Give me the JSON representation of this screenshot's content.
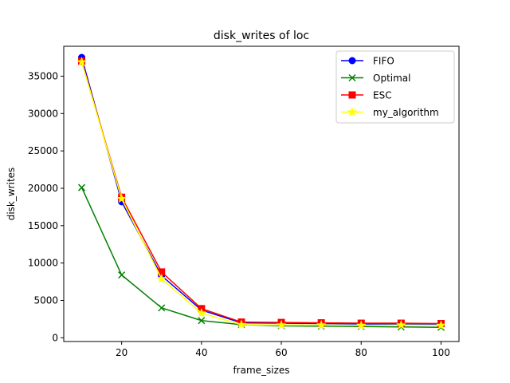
{
  "chart_data": {
    "type": "line",
    "title": "disk_writes of loc",
    "xlabel": "frame_sizes",
    "ylabel": "disk_writes",
    "x": [
      10,
      20,
      30,
      40,
      50,
      60,
      70,
      80,
      90,
      100
    ],
    "xlim": [
      5.5,
      104.5
    ],
    "ylim": [
      -500,
      39000
    ],
    "xticks": [
      20,
      40,
      60,
      80,
      100
    ],
    "yticks": [
      0,
      5000,
      10000,
      15000,
      20000,
      25000,
      30000,
      35000
    ],
    "grid": false,
    "legend_position": "top-right",
    "series": [
      {
        "name": "FIFO",
        "color": "#0000ff",
        "marker": "circle",
        "values": [
          37500,
          18200,
          8300,
          3700,
          2000,
          1950,
          1900,
          1850,
          1850,
          1850
        ]
      },
      {
        "name": "Optimal",
        "color": "#008000",
        "marker": "x",
        "values": [
          20100,
          8400,
          4000,
          2300,
          1750,
          1600,
          1550,
          1500,
          1450,
          1400
        ]
      },
      {
        "name": "ESC",
        "color": "#ff0000",
        "marker": "square",
        "values": [
          37000,
          18800,
          8800,
          3900,
          2100,
          2050,
          2000,
          1950,
          1950,
          1900
        ]
      },
      {
        "name": "my_algorithm",
        "color": "#ffff00",
        "marker": "star",
        "values": [
          36900,
          18600,
          7900,
          3300,
          1750,
          1700,
          1700,
          1650,
          1700,
          1650
        ]
      }
    ]
  }
}
